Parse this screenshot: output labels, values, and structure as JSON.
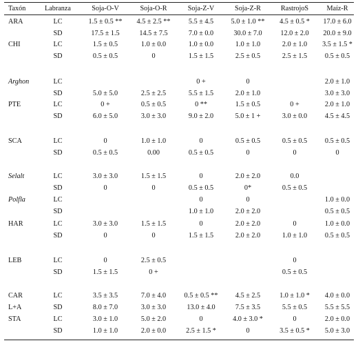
{
  "headers": [
    "Taxón",
    "Labranza",
    "Soja-O-V",
    "Soja-O-R",
    "Soja-Z-V",
    "Soja-Z-R",
    "RastrojoS",
    "Maíz-R"
  ],
  "rows": [
    {
      "taxon": "ARA",
      "lab": "LC",
      "cells": [
        "1.5 ± 0.5 **",
        "4.5 ± 2.5 **",
        "5.5 ± 4.5",
        "5.0 ± 1.0 **",
        "4.5 ± 0.5 *",
        "17.0 ± 6.0"
      ]
    },
    {
      "taxon": "",
      "lab": "SD",
      "cells": [
        "17.5 ± 1.5",
        "14.5 ± 7.5",
        "7.0 ± 0.0",
        "30.0 ± 7.0",
        "12.0 ± 2.0",
        "20.0 ± 9.0"
      ]
    },
    {
      "taxon": "CHI",
      "lab": "LC",
      "cells": [
        "1.5 ± 0.5",
        "1.0 ± 0.0",
        "1.0 ± 0.0",
        "1.0 ± 1.0",
        "2.0 ± 1.0",
        "3.5 ± 1.5 *"
      ]
    },
    {
      "taxon": "",
      "lab": "SD",
      "cells": [
        "0.5 ± 0.5",
        "0",
        "1.5 ± 1.5",
        "2.5 ± 0.5",
        "2.5 ± 1.5",
        "0.5 ± 0.5"
      ]
    },
    {
      "taxon": "Arghon",
      "italic": true,
      "lab": "LC",
      "cells": [
        "",
        "",
        "0 +",
        "0",
        "",
        "2.0 ± 1.0"
      ]
    },
    {
      "taxon": "",
      "lab": "SD",
      "cells": [
        "5.0 ± 5.0",
        "2.5 ± 2.5",
        "5.5 ± 1.5",
        "2.0 ± 1.0",
        "",
        "3.0 ± 3.0"
      ]
    },
    {
      "taxon": "PTE",
      "lab": "LC",
      "cells": [
        "0 +",
        "0.5 ± 0.5",
        "0 **",
        "1.5 ± 0.5",
        "0 +",
        "2.0 ± 1.0"
      ]
    },
    {
      "taxon": "",
      "lab": "SD",
      "cells": [
        "6.0 ± 5.0",
        "3.0 ± 3.0",
        "9.0 ± 2.0",
        "5.0 ± 1 +",
        "3.0 ± 0.0",
        "4.5 ± 4.5"
      ]
    },
    {
      "taxon": "SCA",
      "lab": "LC",
      "cells": [
        "0",
        "1.0 ± 1.0",
        "0",
        "0.5 ± 0.5",
        "0.5 ± 0.5",
        "0.5 ± 0.5"
      ]
    },
    {
      "taxon": "",
      "lab": "SD",
      "cells": [
        "0.5 ± 0.5",
        "0.00",
        "0.5 ± 0.5",
        "0",
        "0",
        "0"
      ]
    },
    {
      "taxon": "Selalt",
      "italic": true,
      "lab": "LC",
      "cells": [
        "3.0 ± 3.0",
        "1.5 ± 1.5",
        "0",
        "2.0 ± 2.0",
        "0.0",
        ""
      ]
    },
    {
      "taxon": "",
      "lab": "SD",
      "cells": [
        "0",
        "0",
        "0.5 ± 0.5",
        "0*",
        "0.5 ± 0.5",
        ""
      ]
    },
    {
      "taxon": "Polfla",
      "italic": true,
      "lab": "LC",
      "cells": [
        "",
        "",
        "0",
        "0",
        "",
        "1.0 ± 0.0"
      ]
    },
    {
      "taxon": "",
      "lab": "SD",
      "cells": [
        "",
        "",
        "1.0 ± 1.0",
        "2.0 ± 2.0",
        "",
        "0.5 ± 0.5"
      ]
    },
    {
      "taxon": "HAR",
      "lab": "LC",
      "cells": [
        "3.0 ± 3.0",
        "1.5 ± 1.5",
        "0",
        "2.0 ± 2.0",
        "0",
        "1.0 ± 0.0"
      ]
    },
    {
      "taxon": "",
      "lab": "SD",
      "cells": [
        "0",
        "0",
        "1.5 ± 1.5",
        "2.0 ± 2.0",
        "1.0 ± 1.0",
        "0.5 ± 0.5"
      ]
    },
    {
      "taxon": "LEB",
      "lab": "LC",
      "cells": [
        "0",
        "2.5 ± 0.5",
        "",
        "",
        "0",
        ""
      ]
    },
    {
      "taxon": "",
      "lab": "SD",
      "cells": [
        "1.5 ± 1.5",
        "0 +",
        "",
        "",
        "0.5 ± 0.5",
        ""
      ]
    },
    {
      "taxon": "CAR",
      "lab": "LC",
      "cells": [
        "3.5 ± 3.5",
        "7.0 ± 4.0",
        "0.5 ± 0.5 **",
        "4.5 ± 2.5",
        "1.0 ± 1.0 *",
        "4.0 ± 0.0"
      ]
    },
    {
      "taxon": "L+A",
      "lab": "SD",
      "cells": [
        "8.0 ± 7.0",
        "3.0 ± 3.0",
        "13.0 ± 4.0",
        "7.5 ± 3.5",
        "5.5 ± 0.5",
        "5.5 ± 5.5"
      ]
    },
    {
      "taxon": "STA",
      "lab": "LC",
      "cells": [
        "3.0 ± 1.0",
        "5.0 ± 2.0",
        "0",
        "4.0 ± 3.0 *",
        "0",
        "2.0 ± 0.0"
      ]
    },
    {
      "taxon": "",
      "lab": "SD",
      "cells": [
        "1.0 ± 1.0",
        "2.0 ± 0.0",
        "2.5 ± 1.5 *",
        "0",
        "3.5 ± 0.5 *",
        "5.0 ± 3.0"
      ]
    }
  ]
}
